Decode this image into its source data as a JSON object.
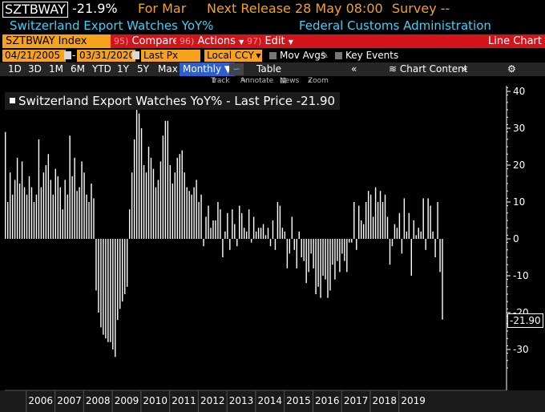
{
  "header": {
    "ticker": "SZTBWAY",
    "last_change": "-21.9%",
    "for_label": "For Mar",
    "next_release": "Next Release 28 May 08:00",
    "survey": "Survey --"
  },
  "subheader": {
    "security_name": "Switzerland Export Watches YoY%",
    "source": "Federal Customs Administration"
  },
  "toolbar": {
    "index_field": "SZTBWAY Index",
    "compare_num": "95)",
    "compare_label": "Compare",
    "actions_num": "96)",
    "actions_label": "Actions",
    "edit_num": "97)",
    "edit_label": "Edit",
    "title_right": "Line Chart"
  },
  "options": {
    "start_date": "04/21/2005",
    "end_date": "03/31/2020",
    "field": "Last Px",
    "currency": "Local CCY",
    "mov_avgs": "Mov Avgs",
    "key_events": "Key Events"
  },
  "periods": {
    "p1": "1D",
    "p2": "3D",
    "p3": "1M",
    "p4": "6M",
    "p5": "YTD",
    "p6": "1Y",
    "p7": "5Y",
    "p8": "Max",
    "frequency": "Monthly",
    "table": "Table",
    "chart_content": "Chart Content"
  },
  "tools": {
    "track": "Track",
    "annotate": "Annotate",
    "news": "News",
    "zoom": "Zoom"
  },
  "legend": {
    "text": "Switzerland Export Watches YoY% - Last Price -21.90"
  },
  "last_value_label": "-21.90",
  "chart_data": {
    "type": "bar",
    "title": "",
    "ylabel": "",
    "ylim": [
      -35,
      42
    ],
    "yticks": [
      40,
      30,
      20,
      10,
      0,
      -10,
      -20,
      -30
    ],
    "year_labels": [
      "2006",
      "2007",
      "2008",
      "2009",
      "2010",
      "2011",
      "2012",
      "2013",
      "2014",
      "2015",
      "2016",
      "2017",
      "2018",
      "2019"
    ],
    "x_start": "2005-04",
    "frequency": "monthly",
    "values": [
      29,
      10,
      18,
      12,
      16,
      22,
      15,
      21,
      14,
      12,
      17,
      14,
      10,
      12,
      27,
      14,
      18,
      20,
      23,
      16,
      12,
      19,
      17,
      14,
      8,
      16,
      12,
      28,
      17,
      22,
      13,
      14,
      21,
      18,
      12,
      10,
      15,
      11,
      -14,
      -20,
      -24,
      -26,
      -27,
      -28,
      -28,
      -30,
      -32,
      -22,
      -19,
      -17,
      -15,
      -13,
      8,
      18,
      27,
      36,
      34,
      30,
      20,
      18,
      25,
      22,
      19,
      14,
      16,
      21,
      28,
      32,
      32,
      20,
      15,
      18,
      22,
      23,
      24,
      18,
      14,
      13,
      12,
      14,
      16,
      10,
      12,
      -2,
      6,
      9,
      3,
      5,
      5,
      10,
      8,
      -5,
      2,
      7,
      -3,
      8,
      4,
      -2,
      9,
      7,
      3,
      2,
      8,
      -1,
      6,
      2,
      3,
      3,
      4,
      1,
      3,
      -2,
      5,
      -3,
      10,
      9,
      3,
      2,
      -8,
      -4,
      6,
      -3,
      -8,
      2,
      -5,
      -6,
      -12,
      -9,
      -4,
      -8,
      -15,
      -13,
      -16,
      -10,
      -11,
      -16,
      -14,
      -7,
      -11,
      -6,
      -9,
      -4,
      -6,
      -9,
      -1,
      -1,
      10,
      -3,
      9,
      5,
      4,
      10,
      13,
      12,
      6,
      14,
      10,
      13,
      10,
      12,
      6,
      -7,
      -2,
      4,
      3,
      7,
      -4,
      11,
      2,
      7,
      -10,
      5,
      1,
      3,
      2,
      11,
      -3,
      11,
      9,
      2,
      -5,
      10,
      -9,
      -21.9
    ]
  }
}
